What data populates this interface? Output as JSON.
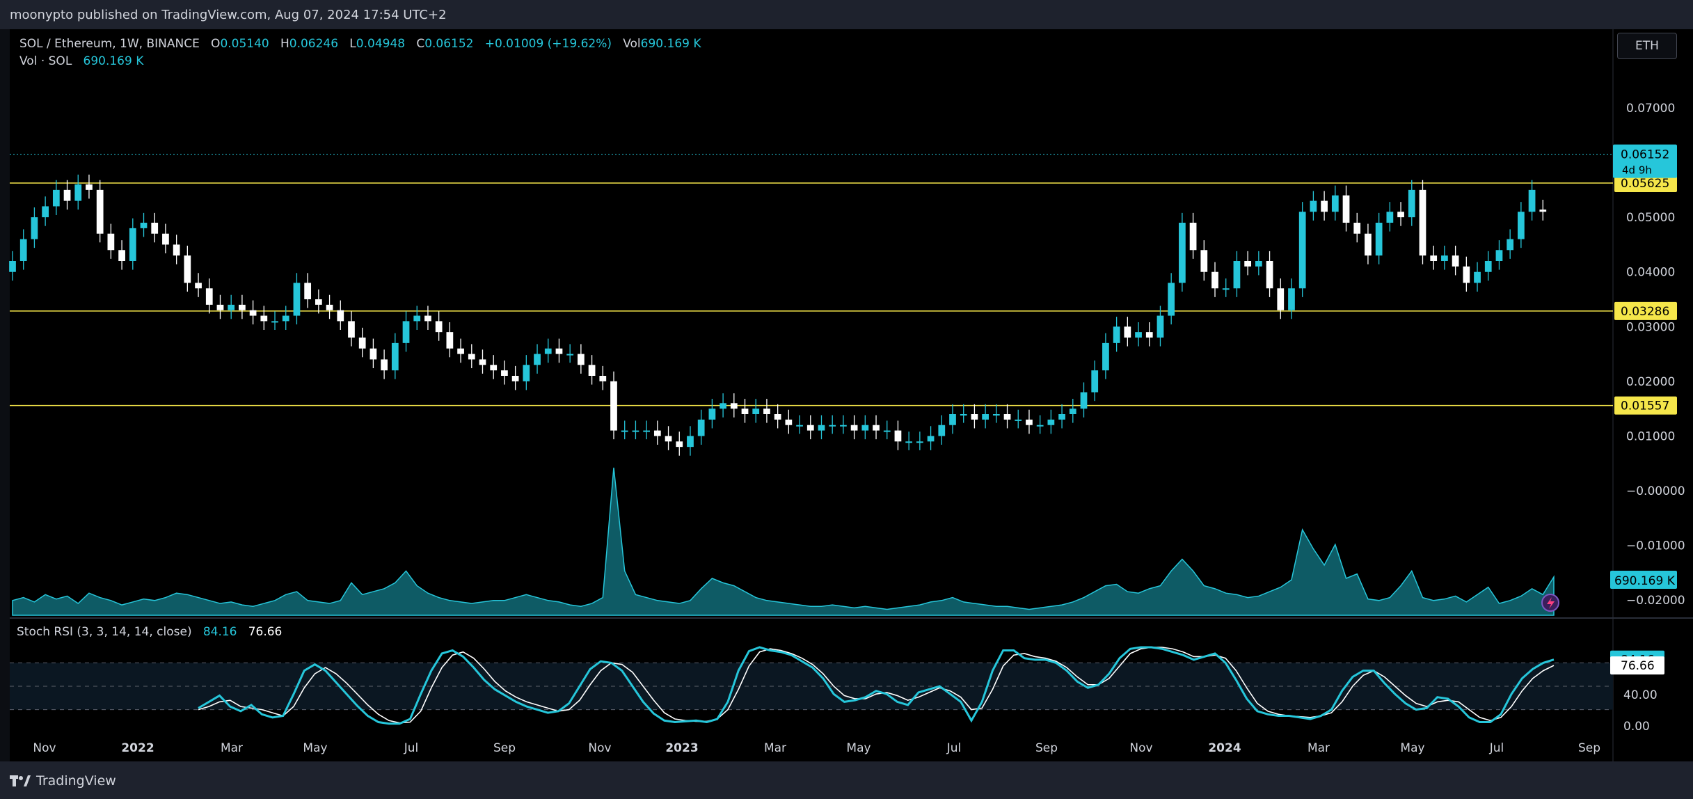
{
  "header": {
    "published": "moonypto published on TradingView.com, Aug 07, 2024 17:54 UTC+2"
  },
  "legend": {
    "symbol": "SOL / Ethereum, 1W, BINANCE",
    "o_label": "O",
    "o": "0.05140",
    "h_label": "H",
    "h": "0.06246",
    "l_label": "L",
    "l": "0.04948",
    "c_label": "C",
    "c": "0.06152",
    "change": "+0.01009 (+19.62%)",
    "vol_label": "Vol",
    "vol": "690.169 K"
  },
  "volume_legend": {
    "label": "Vol · SOL",
    "value": "690.169 K"
  },
  "stoch_legend": {
    "label": "Stoch RSI (3, 3, 14, 14, close)",
    "k": "84.16",
    "d": "76.66"
  },
  "currency_button": "ETH",
  "footer": {
    "brand": "TradingView",
    "logo_icon": "tradingview-logo-icon"
  },
  "colors": {
    "up": "#26c6da",
    "down": "#ffffff",
    "level": "#f5e64a",
    "stoch_k": "#26c6da",
    "stoch_d": "#ffffff",
    "volume": "#1aa6b8"
  },
  "chart_data": {
    "type": "candlestick",
    "timeframe": "1W",
    "x_tick_labels": [
      "Nov",
      "2022",
      "Mar",
      "May",
      "Jul",
      "Sep",
      "Nov",
      "2023",
      "Mar",
      "May",
      "Jul",
      "Sep",
      "Nov",
      "2024",
      "Mar",
      "May",
      "Jul",
      "Sep"
    ],
    "y_ticks": [
      "0.07000",
      "0.06000",
      "0.05000",
      "0.04000",
      "0.03000",
      "0.02000",
      "0.01000",
      "−0.00000",
      "−0.01000",
      "−0.02000"
    ],
    "price_scale_values": [
      0.07,
      0.06,
      0.05,
      0.04,
      0.03,
      0.02,
      0.01,
      0,
      -0.01,
      -0.02
    ],
    "horizontal_levels": [
      {
        "value": 0.05625,
        "label": "0.05625"
      },
      {
        "value": 0.03286,
        "label": "0.03286"
      },
      {
        "value": 0.01557,
        "label": "0.01557"
      }
    ],
    "last_price": {
      "value": 0.06152,
      "label": "0.06152",
      "countdown": "4d 9h"
    },
    "candles_close": [
      0.042,
      0.046,
      0.05,
      0.052,
      0.055,
      0.053,
      0.056,
      0.055,
      0.047,
      0.044,
      0.042,
      0.048,
      0.049,
      0.047,
      0.045,
      0.043,
      0.038,
      0.037,
      0.034,
      0.033,
      0.034,
      0.033,
      0.032,
      0.031,
      0.031,
      0.032,
      0.038,
      0.035,
      0.034,
      0.033,
      0.031,
      0.028,
      0.026,
      0.024,
      0.022,
      0.027,
      0.031,
      0.032,
      0.031,
      0.029,
      0.026,
      0.025,
      0.024,
      0.023,
      0.022,
      0.021,
      0.02,
      0.023,
      0.025,
      0.026,
      0.025,
      0.025,
      0.023,
      0.021,
      0.02,
      0.011,
      0.011,
      0.011,
      0.011,
      0.01,
      0.009,
      0.008,
      0.01,
      0.013,
      0.015,
      0.016,
      0.015,
      0.014,
      0.015,
      0.014,
      0.013,
      0.012,
      0.012,
      0.011,
      0.012,
      0.012,
      0.012,
      0.011,
      0.012,
      0.011,
      0.011,
      0.009,
      0.009,
      0.009,
      0.01,
      0.012,
      0.014,
      0.014,
      0.013,
      0.014,
      0.014,
      0.013,
      0.013,
      0.012,
      0.012,
      0.013,
      0.014,
      0.015,
      0.018,
      0.022,
      0.027,
      0.03,
      0.028,
      0.029,
      0.028,
      0.032,
      0.038,
      0.049,
      0.044,
      0.04,
      0.037,
      0.037,
      0.042,
      0.041,
      0.042,
      0.037,
      0.033,
      0.037,
      0.051,
      0.053,
      0.051,
      0.054,
      0.049,
      0.047,
      0.043,
      0.049,
      0.051,
      0.05,
      0.055,
      0.043,
      0.042,
      0.043,
      0.041,
      0.038,
      0.04,
      0.042,
      0.044,
      0.046,
      0.051,
      0.055,
      0.051,
      0.0615
    ],
    "candles_open": [
      0.04,
      0.042,
      0.046,
      0.05,
      0.052,
      0.055,
      0.053,
      0.056,
      0.055,
      0.047,
      0.044,
      0.042,
      0.048,
      0.049,
      0.047,
      0.045,
      0.043,
      0.038,
      0.037,
      0.034,
      0.033,
      0.034,
      0.033,
      0.032,
      0.031,
      0.031,
      0.032,
      0.038,
      0.035,
      0.034,
      0.033,
      0.031,
      0.028,
      0.026,
      0.024,
      0.022,
      0.027,
      0.031,
      0.032,
      0.031,
      0.029,
      0.026,
      0.025,
      0.024,
      0.023,
      0.022,
      0.021,
      0.02,
      0.023,
      0.025,
      0.026,
      0.025,
      0.025,
      0.023,
      0.021,
      0.02,
      0.011,
      0.011,
      0.011,
      0.011,
      0.01,
      0.009,
      0.008,
      0.01,
      0.013,
      0.015,
      0.016,
      0.015,
      0.014,
      0.015,
      0.014,
      0.013,
      0.012,
      0.012,
      0.011,
      0.012,
      0.012,
      0.012,
      0.011,
      0.012,
      0.011,
      0.011,
      0.009,
      0.009,
      0.009,
      0.01,
      0.012,
      0.014,
      0.014,
      0.013,
      0.014,
      0.014,
      0.013,
      0.013,
      0.012,
      0.012,
      0.013,
      0.014,
      0.015,
      0.018,
      0.022,
      0.027,
      0.03,
      0.028,
      0.029,
      0.028,
      0.032,
      0.038,
      0.049,
      0.044,
      0.04,
      0.037,
      0.037,
      0.042,
      0.041,
      0.042,
      0.037,
      0.033,
      0.037,
      0.051,
      0.053,
      0.051,
      0.054,
      0.049,
      0.047,
      0.043,
      0.049,
      0.051,
      0.05,
      0.055,
      0.043,
      0.042,
      0.043,
      0.041,
      0.038,
      0.04,
      0.042,
      0.044,
      0.046,
      0.051,
      0.0514
    ],
    "volume_relative": [
      0.1,
      0.12,
      0.09,
      0.14,
      0.11,
      0.13,
      0.08,
      0.15,
      0.12,
      0.1,
      0.07,
      0.09,
      0.11,
      0.1,
      0.12,
      0.15,
      0.14,
      0.12,
      0.1,
      0.08,
      0.09,
      0.07,
      0.06,
      0.08,
      0.1,
      0.14,
      0.16,
      0.1,
      0.09,
      0.08,
      0.1,
      0.22,
      0.14,
      0.16,
      0.18,
      0.22,
      0.3,
      0.2,
      0.15,
      0.12,
      0.1,
      0.09,
      0.08,
      0.09,
      0.1,
      0.1,
      0.12,
      0.14,
      0.12,
      0.1,
      0.09,
      0.07,
      0.06,
      0.08,
      0.12,
      1.0,
      0.3,
      0.14,
      0.12,
      0.1,
      0.09,
      0.08,
      0.1,
      0.18,
      0.25,
      0.22,
      0.2,
      0.16,
      0.12,
      0.1,
      0.09,
      0.08,
      0.07,
      0.06,
      0.06,
      0.07,
      0.06,
      0.05,
      0.06,
      0.05,
      0.04,
      0.05,
      0.06,
      0.07,
      0.09,
      0.1,
      0.12,
      0.09,
      0.08,
      0.07,
      0.06,
      0.06,
      0.05,
      0.04,
      0.05,
      0.06,
      0.07,
      0.09,
      0.12,
      0.16,
      0.2,
      0.21,
      0.16,
      0.15,
      0.18,
      0.2,
      0.3,
      0.38,
      0.3,
      0.2,
      0.18,
      0.15,
      0.14,
      0.12,
      0.13,
      0.16,
      0.19,
      0.24,
      0.58,
      0.45,
      0.34,
      0.48,
      0.25,
      0.28,
      0.11,
      0.1,
      0.12,
      0.2,
      0.3,
      0.12,
      0.1,
      0.11,
      0.13,
      0.09,
      0.14,
      0.19,
      0.08,
      0.1,
      0.13,
      0.18,
      0.14,
      0.26
    ],
    "volume_scale_value": "690.169 K",
    "stoch_rsi": {
      "levels": [
        80,
        50,
        20
      ],
      "y_tick_labels": [
        "40.00",
        "0.00"
      ],
      "k_last": 84.16,
      "d_last": 76.66,
      "k": [
        22,
        30,
        38,
        24,
        18,
        26,
        14,
        10,
        12,
        40,
        70,
        78,
        70,
        55,
        40,
        25,
        12,
        4,
        2,
        2,
        8,
        40,
        70,
        92,
        96,
        88,
        74,
        58,
        46,
        38,
        30,
        24,
        20,
        16,
        18,
        28,
        50,
        72,
        82,
        80,
        70,
        50,
        30,
        15,
        6,
        4,
        5,
        6,
        4,
        8,
        30,
        70,
        95,
        100,
        96,
        94,
        90,
        82,
        74,
        60,
        40,
        30,
        32,
        36,
        44,
        40,
        30,
        26,
        42,
        46,
        50,
        40,
        30,
        6,
        30,
        70,
        96,
        96,
        86,
        84,
        84,
        80,
        70,
        56,
        48,
        52,
        66,
        86,
        98,
        100,
        100,
        98,
        94,
        90,
        84,
        88,
        92,
        80,
        58,
        34,
        18,
        14,
        12,
        12,
        10,
        8,
        12,
        20,
        44,
        62,
        70,
        70,
        54,
        40,
        28,
        20,
        22,
        36,
        34,
        24,
        10,
        4,
        4,
        14,
        40,
        60,
        72,
        80,
        84.16
      ],
      "d": [
        20,
        24,
        30,
        32,
        24,
        22,
        20,
        16,
        12,
        24,
        48,
        66,
        74,
        66,
        54,
        40,
        26,
        14,
        6,
        3,
        4,
        18,
        48,
        74,
        90,
        94,
        86,
        72,
        56,
        44,
        36,
        30,
        26,
        22,
        18,
        20,
        32,
        52,
        70,
        80,
        78,
        68,
        50,
        32,
        16,
        8,
        6,
        5,
        5,
        8,
        20,
        46,
        76,
        94,
        98,
        96,
        92,
        86,
        78,
        66,
        50,
        38,
        34,
        34,
        40,
        42,
        38,
        32,
        36,
        42,
        48,
        44,
        36,
        20,
        22,
        46,
        76,
        90,
        92,
        88,
        86,
        82,
        74,
        62,
        52,
        52,
        60,
        76,
        92,
        98,
        100,
        100,
        98,
        94,
        88,
        88,
        90,
        86,
        70,
        48,
        28,
        18,
        14,
        12,
        11,
        10,
        12,
        16,
        30,
        50,
        64,
        70,
        62,
        50,
        38,
        28,
        24,
        30,
        32,
        30,
        20,
        10,
        6,
        10,
        24,
        44,
        60,
        70,
        76.66
      ]
    }
  }
}
